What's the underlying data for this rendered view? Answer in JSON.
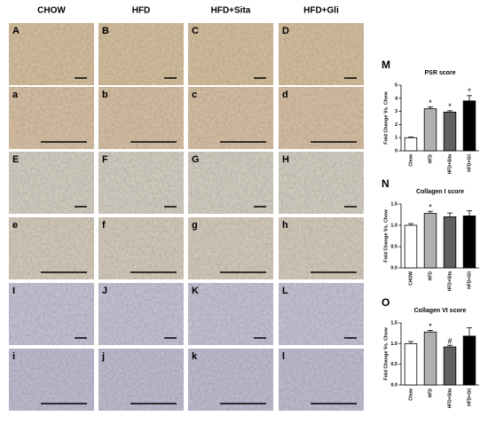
{
  "column_headers": [
    "CHOW",
    "HFD",
    "HFD+Sita",
    "HFD+Gli"
  ],
  "panels": [
    [
      "A",
      "B",
      "C",
      "D"
    ],
    [
      "a",
      "b",
      "c",
      "d"
    ],
    [
      "E",
      "F",
      "G",
      "H"
    ],
    [
      "e",
      "f",
      "g",
      "h"
    ],
    [
      "I",
      "J",
      "K",
      "L"
    ],
    [
      "i",
      "j",
      "k",
      "l"
    ]
  ],
  "chart_data": [
    {
      "type": "bar",
      "panel_label": "M",
      "title": "PSR score",
      "ylabel": "Fold Change Vs. Chow",
      "categories": [
        "Chow",
        "HFD",
        "HFD+Sita",
        "HFD+Gli"
      ],
      "values": [
        1.0,
        3.2,
        2.95,
        3.8
      ],
      "errors": [
        0.05,
        0.15,
        0.1,
        0.4
      ],
      "colors": [
        "#ffffff",
        "#b0b0b0",
        "#606060",
        "#000000"
      ],
      "annotations": [
        null,
        "*",
        "*",
        "*"
      ],
      "ylim": [
        0,
        5
      ],
      "yticks": [
        0,
        1,
        2,
        3,
        4,
        5
      ]
    },
    {
      "type": "bar",
      "panel_label": "N",
      "title": "Collagen I score",
      "ylabel": "Fold Change Vs. Chow",
      "categories": [
        "CHOW",
        "HFD",
        "HFD+Sita",
        "HFD+Gli"
      ],
      "values": [
        1.0,
        1.28,
        1.2,
        1.22
      ],
      "errors": [
        0.04,
        0.05,
        0.09,
        0.12
      ],
      "colors": [
        "#ffffff",
        "#b0b0b0",
        "#606060",
        "#000000"
      ],
      "annotations": [
        null,
        "*",
        null,
        null
      ],
      "ylim": [
        0,
        1.5
      ],
      "yticks": [
        {
          "value": 0,
          "label": "0.0"
        },
        0.5,
        {
          "value": 1,
          "label": "1.0"
        },
        1.5
      ]
    },
    {
      "type": "bar",
      "panel_label": "O",
      "title": "Collagen VI score",
      "ylabel": "Fold Change Vs. Chow",
      "categories": [
        "Chow",
        "HFD",
        "HFD+Sita",
        "HFD+Gli"
      ],
      "values": [
        1.0,
        1.28,
        0.92,
        1.18
      ],
      "errors": [
        0.05,
        0.04,
        0.04,
        0.2
      ],
      "colors": [
        "#ffffff",
        "#b0b0b0",
        "#606060",
        "#000000"
      ],
      "annotations": [
        null,
        "*",
        "#",
        null
      ],
      "ylim": [
        0,
        1.5
      ],
      "yticks": [
        {
          "value": 0,
          "label": "0.0"
        },
        0.5,
        {
          "value": 1,
          "label": "1.0"
        },
        1.5
      ]
    }
  ]
}
